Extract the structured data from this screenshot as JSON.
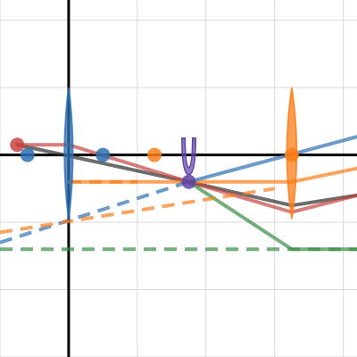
{
  "graph": {
    "x_range": [
      -1,
      4.2
    ],
    "y_range": [
      -3,
      2.3
    ],
    "grid_step": 1,
    "colors": {
      "black": "#2d2d2d",
      "red": "#c74440",
      "blue": "#2d70b3",
      "orange": "#fa7e19",
      "green": "#388c46",
      "purple": "#6042a6"
    },
    "curves": [
      {
        "name": "black-ray-path",
        "color": "black",
        "dashed": false,
        "points": [
          [
            -0.75,
            0.15
          ],
          [
            1.75,
            -0.4
          ],
          [
            3.25,
            -0.75
          ],
          [
            4.2,
            -0.6
          ]
        ]
      },
      {
        "name": "red-ray-path",
        "color": "red",
        "dashed": false,
        "points": [
          [
            -0.75,
            0.15
          ],
          [
            0,
            0.15
          ],
          [
            1.75,
            -0.4
          ],
          [
            3.25,
            -0.85
          ],
          [
            4.2,
            -0.6
          ]
        ]
      },
      {
        "name": "orange-ray-path",
        "color": "orange",
        "dashed": false,
        "points": [
          [
            0,
            -0.4
          ],
          [
            3.25,
            -0.4
          ],
          [
            4.2,
            -0.2
          ]
        ]
      },
      {
        "name": "blue-ray-path",
        "color": "blue",
        "dashed": false,
        "points": [
          [
            1.75,
            -0.4
          ],
          [
            4.2,
            0.27
          ]
        ]
      },
      {
        "name": "green-ray-path",
        "color": "green",
        "dashed": false,
        "points": [
          [
            1.75,
            -0.4
          ],
          [
            3.25,
            -1.4
          ],
          [
            4.2,
            -1.4
          ]
        ]
      },
      {
        "name": "blue-dashed-extension",
        "color": "blue",
        "dashed": true,
        "points": [
          [
            -1,
            -1.3
          ],
          [
            1.75,
            -0.4
          ]
        ]
      },
      {
        "name": "orange-dashed-extension",
        "color": "orange",
        "dashed": true,
        "points": [
          [
            -1,
            -1.15
          ],
          [
            3.0,
            -0.5
          ]
        ]
      },
      {
        "name": "green-dashed-focal-line",
        "color": "green",
        "dashed": true,
        "points": [
          [
            -1,
            -1.4
          ],
          [
            4.2,
            -1.4
          ]
        ]
      },
      {
        "name": "orange-dashed-horizontal",
        "color": "orange",
        "dashed": true,
        "points": [
          [
            0,
            -0.4
          ],
          [
            1.0,
            -0.4
          ]
        ]
      }
    ],
    "lenses": [
      {
        "name": "left-lens",
        "color": "blue",
        "x": 0,
        "y_top": 1.0,
        "y_bottom": -0.95,
        "half_width": 0.06
      },
      {
        "name": "right-lens",
        "color": "orange",
        "x": 3.25,
        "y_top": 1.0,
        "y_bottom": -0.95,
        "half_width": 0.07
      }
    ],
    "points": [
      {
        "name": "object-point-red",
        "color": "red",
        "x": -0.75,
        "y": 0.15
      },
      {
        "name": "object-point-blue",
        "color": "blue",
        "x": -0.6,
        "y": 0.0
      },
      {
        "name": "focal-point-blue",
        "color": "blue",
        "x": 0.5,
        "y": 0.0
      },
      {
        "name": "focal-point-orange",
        "color": "orange",
        "x": 1.25,
        "y": 0.0
      },
      {
        "name": "lens-point-orange",
        "color": "orange",
        "x": 3.25,
        "y": 0.0
      },
      {
        "name": "image-point-purple",
        "color": "purple",
        "x": 1.75,
        "y": -0.4
      }
    ],
    "cup_marker": {
      "name": "purple-u-marker",
      "color": "purple",
      "x": 1.75,
      "y": -0.1,
      "half_width": 0.1,
      "height": 0.35
    }
  }
}
